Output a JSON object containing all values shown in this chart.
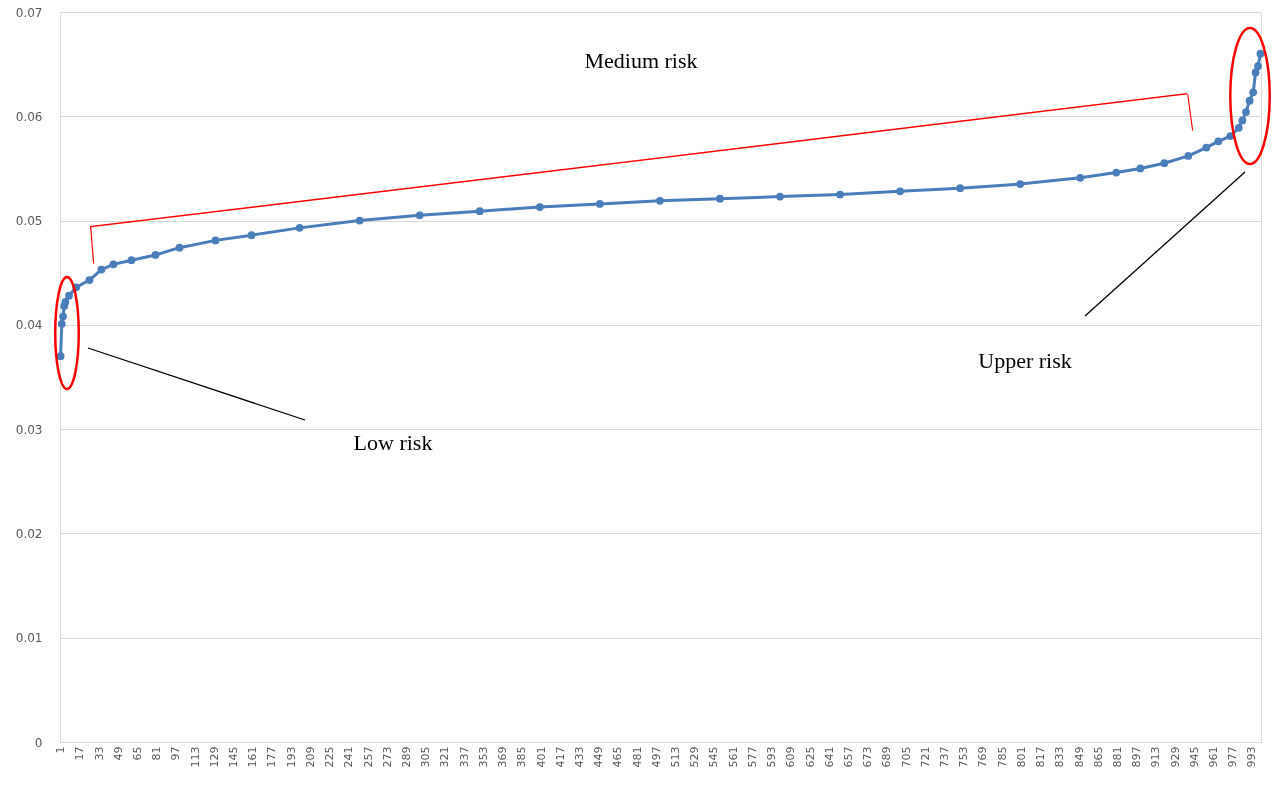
{
  "chart_data": {
    "type": "line",
    "x": [
      1,
      2,
      3,
      4,
      5,
      8,
      14,
      25,
      35,
      45,
      60,
      80,
      100,
      130,
      160,
      200,
      250,
      300,
      350,
      400,
      450,
      500,
      550,
      600,
      650,
      700,
      750,
      800,
      850,
      880,
      900,
      920,
      940,
      955,
      965,
      975,
      982,
      985,
      988,
      991,
      994,
      996,
      998,
      1000
    ],
    "series": [
      {
        "color": "#4a7ebb",
        "values": [
          0.037,
          0.0401,
          0.0408,
          0.0418,
          0.0422,
          0.0428,
          0.0436,
          0.0443,
          0.0453,
          0.0458,
          0.0462,
          0.0467,
          0.0474,
          0.0481,
          0.0486,
          0.0493,
          0.05,
          0.0505,
          0.0509,
          0.0513,
          0.0516,
          0.0519,
          0.0521,
          0.0523,
          0.0525,
          0.0528,
          0.0531,
          0.0535,
          0.0541,
          0.0546,
          0.055,
          0.0555,
          0.0562,
          0.057,
          0.0576,
          0.0581,
          0.0589,
          0.0596,
          0.0604,
          0.0615,
          0.0623,
          0.0642,
          0.0648,
          0.066
        ]
      }
    ],
    "xlim": [
      0.5,
      1000.5
    ],
    "xticks": [
      1,
      17,
      33,
      49,
      65,
      81,
      97,
      113,
      129,
      145,
      161,
      177,
      193,
      209,
      225,
      241,
      257,
      273,
      289,
      305,
      321,
      337,
      353,
      369,
      385,
      401,
      417,
      433,
      449,
      465,
      481,
      497,
      513,
      529,
      545,
      561,
      577,
      593,
      609,
      625,
      641,
      657,
      673,
      689,
      705,
      721,
      737,
      753,
      769,
      785,
      801,
      817,
      833,
      849,
      865,
      881,
      897,
      913,
      929,
      945,
      961,
      977,
      993
    ],
    "ylim": [
      0,
      0.07
    ],
    "yticks": [
      0,
      0.01,
      0.02,
      0.03,
      0.04,
      0.05,
      0.06,
      0.07
    ],
    "grid": "y",
    "marker": "circle",
    "line_style": "solid",
    "legend": false,
    "annotations": [
      "Medium risk",
      "Low risk",
      "Upper risk"
    ]
  }
}
